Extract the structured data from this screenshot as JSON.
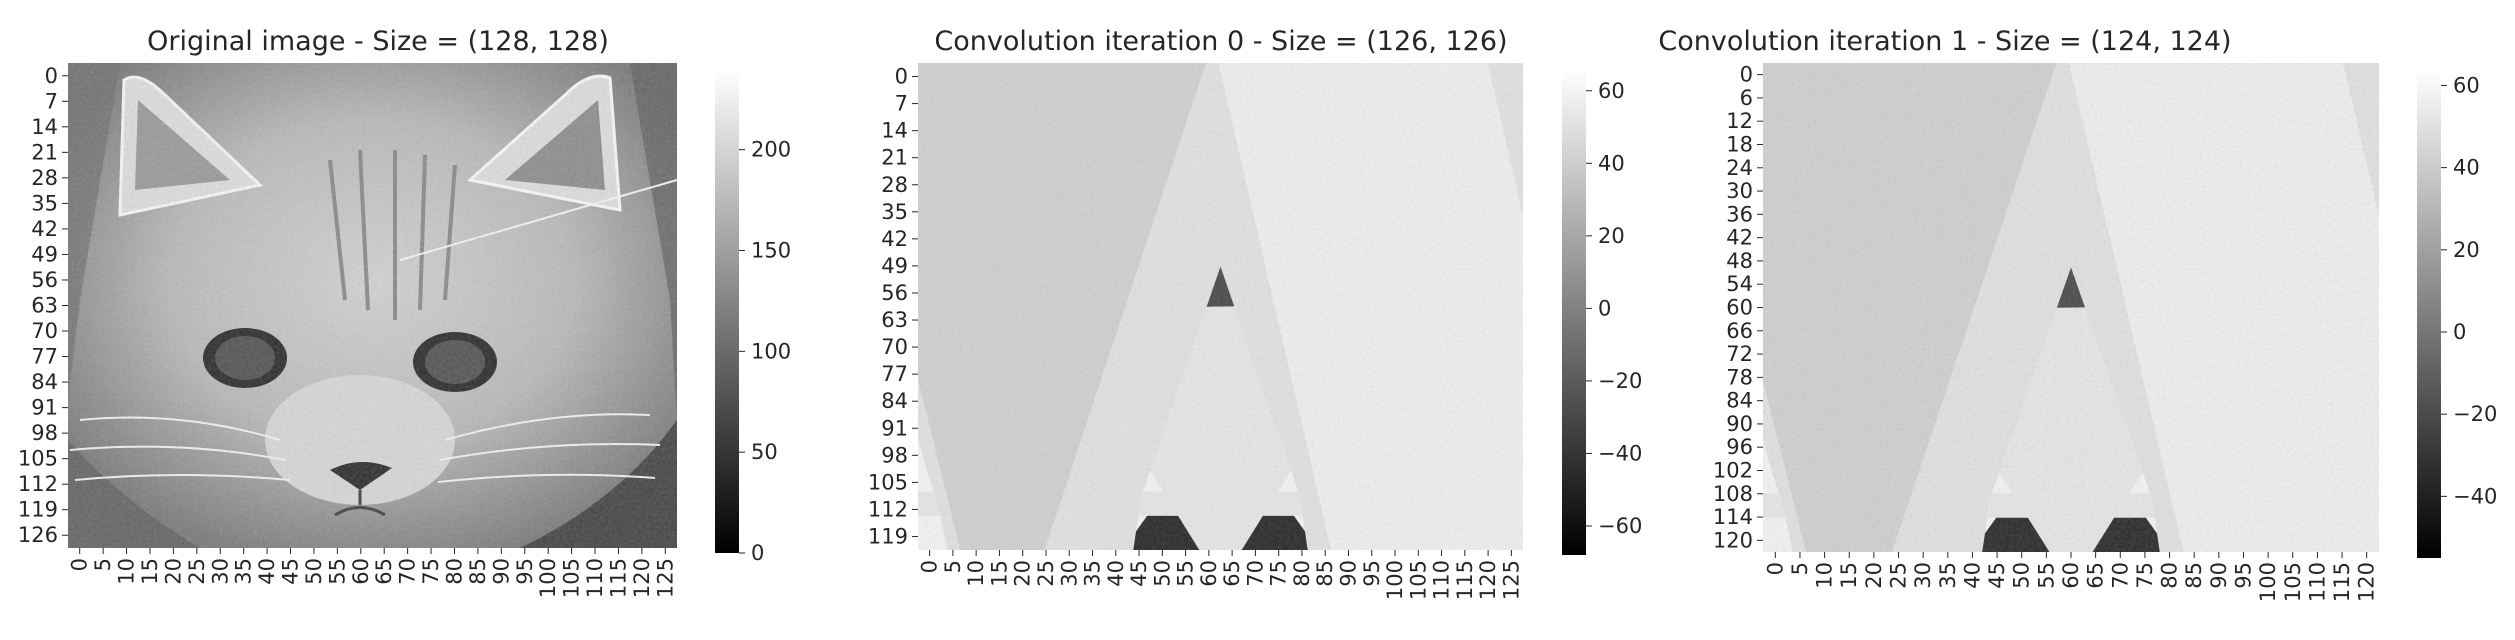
{
  "chart_data": [
    {
      "type": "heatmap",
      "title": "Original image - Size = (128, 128)",
      "image": "grayscale photo of a cat face",
      "y_tick_labels": [
        "0",
        "7",
        "14",
        "21",
        "28",
        "35",
        "42",
        "49",
        "56",
        "63",
        "70",
        "77",
        "84",
        "91",
        "98",
        "105",
        "112",
        "119",
        "126"
      ],
      "x_tick_labels": [
        "0",
        "5",
        "10",
        "15",
        "20",
        "25",
        "30",
        "35",
        "40",
        "45",
        "50",
        "55",
        "60",
        "65",
        "70",
        "75",
        "80",
        "85",
        "90",
        "95",
        "100",
        "105",
        "110",
        "115",
        "120",
        "125"
      ],
      "colorbar": {
        "min": 0,
        "max": 240,
        "ticks": [
          "0",
          "50",
          "100",
          "150",
          "200"
        ],
        "tick_values": [
          0,
          50,
          100,
          150,
          200
        ]
      },
      "colormap": "gray"
    },
    {
      "type": "heatmap",
      "title": "Convolution iteration 0 - Size = (126, 126)",
      "image": "edge-detected cat face on gray background",
      "y_tick_labels": [
        "0",
        "7",
        "14",
        "21",
        "28",
        "35",
        "42",
        "49",
        "56",
        "63",
        "70",
        "77",
        "84",
        "91",
        "98",
        "105",
        "112",
        "119"
      ],
      "x_tick_labels": [
        "0",
        "5",
        "10",
        "15",
        "20",
        "25",
        "30",
        "35",
        "40",
        "45",
        "50",
        "55",
        "60",
        "65",
        "70",
        "75",
        "80",
        "85",
        "90",
        "95",
        "100",
        "105",
        "110",
        "115",
        "120",
        "125"
      ],
      "colorbar": {
        "min": -68,
        "max": 66,
        "ticks": [
          "60",
          "40",
          "20",
          "0",
          "−20",
          "−40",
          "−60"
        ],
        "tick_values": [
          60,
          40,
          20,
          0,
          -20,
          -40,
          -60
        ]
      },
      "colormap": "gray"
    },
    {
      "type": "heatmap",
      "title": "Convolution iteration 1 - Size = (124, 124)",
      "image": "edge-detected cat face on gray background",
      "y_tick_labels": [
        "0",
        "6",
        "12",
        "18",
        "24",
        "30",
        "36",
        "42",
        "48",
        "54",
        "60",
        "66",
        "72",
        "78",
        "84",
        "90",
        "96",
        "102",
        "108",
        "114",
        "120"
      ],
      "x_tick_labels": [
        "0",
        "5",
        "10",
        "15",
        "20",
        "25",
        "30",
        "35",
        "40",
        "45",
        "50",
        "55",
        "60",
        "65",
        "70",
        "75",
        "80",
        "85",
        "90",
        "95",
        "100",
        "105",
        "110",
        "115",
        "120"
      ],
      "colorbar": {
        "min": -55,
        "max": 64,
        "ticks": [
          "60",
          "40",
          "20",
          "0",
          "−20",
          "−40"
        ],
        "tick_values": [
          60,
          40,
          20,
          0,
          -20,
          -40
        ]
      },
      "colormap": "gray"
    }
  ],
  "colors": {
    "text": "#262626",
    "background": "#ffffff",
    "cb_low": "#000000",
    "cb_high": "#ffffff",
    "conv_bg": "#8f8f8f"
  }
}
